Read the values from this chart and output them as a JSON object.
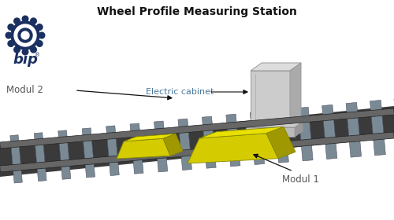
{
  "title": "Wheel Profile Measuring Station",
  "title_fontsize": 10,
  "bg_color": "#ffffff",
  "bip_color": "#1a3060",
  "label_modul2": "Modul 2",
  "label_modul1": "Modul 1",
  "label_cabinet": "Electric cabinet",
  "label_cabinet_color": "#4a7a9b",
  "label_modul_color": "#555555",
  "arrow_color": "#111111",
  "sleeper_color": "#7a8a95",
  "ballast_color": "#3a3a3a",
  "module_yellow_front": "#d4cc00",
  "module_yellow_top": "#e8e000",
  "module_yellow_side": "#a09800",
  "cabinet_front": "#cccccc",
  "cabinet_top": "#dddddd",
  "cabinet_side": "#aaaaaa",
  "cabinet_base_front": "#bbbbbb",
  "cabinet_base_top": "#cccccc",
  "cabinet_base_side": "#999999"
}
